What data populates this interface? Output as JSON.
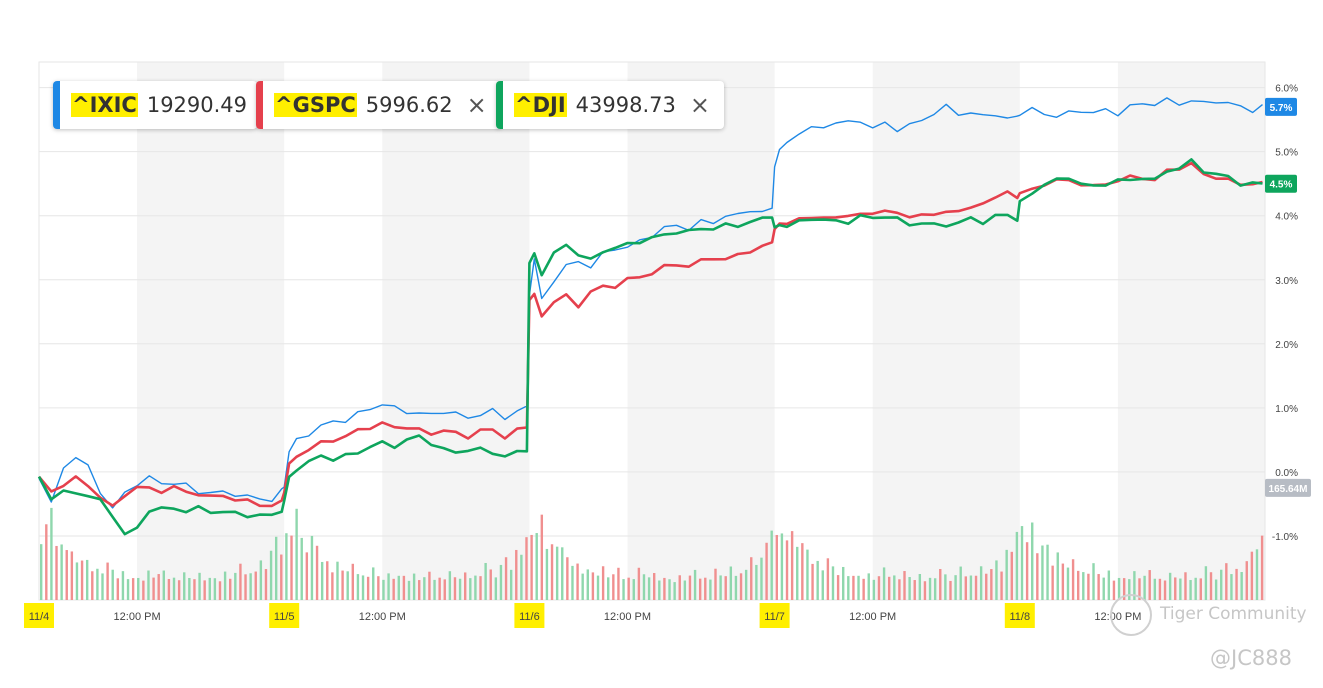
{
  "legend": [
    {
      "symbol": "^IXIC",
      "value": "19290.49",
      "color": "#1e88e5",
      "closable": false
    },
    {
      "symbol": "^GSPC",
      "value": "5996.62",
      "color": "#e5404d",
      "closable": true
    },
    {
      "symbol": "^DJI",
      "value": "43998.73",
      "color": "#0ea55d",
      "closable": true
    }
  ],
  "close_icon": "×",
  "watermark": {
    "brand": "Tiger Community",
    "handle": "@JC888"
  },
  "colors": {
    "nasdaq": "#1e88e5",
    "sp500": "#e5404d",
    "dow": "#0ea55d",
    "vol_up": "#8fd7ad",
    "vol_down": "#f08f8f",
    "band": "#f4f4f4",
    "grid": "#e6e6e6",
    "highlight": "#ffef00",
    "vol_label_bg": "#b7bcc4"
  },
  "chart_data": {
    "type": "line",
    "y_unit": "%",
    "ylim": [
      -2.0,
      6.4
    ],
    "y_ticks": [
      6,
      5,
      4,
      3,
      2,
      1,
      0,
      -1
    ],
    "y_tick_labels": [
      "6.0%",
      "5.0%",
      "4.0%",
      "3.0%",
      "2.0%",
      "1.0%",
      "0.0%",
      "-1.0%"
    ],
    "x_tick_labels": [
      "11/4",
      "12:00 PM",
      "11/5",
      "12:00 PM",
      "11/6",
      "12:00 PM",
      "11/7",
      "12:00 PM",
      "11/8",
      "12:00 PM"
    ],
    "highlighted_x_labels": [
      "11/4",
      "11/5",
      "11/6",
      "11/7",
      "11/8"
    ],
    "x_domain": [
      0,
      5
    ],
    "x": [
      0,
      0.05,
      0.1,
      0.15,
      0.2,
      0.25,
      0.3,
      0.35,
      0.4,
      0.45,
      0.5,
      0.55,
      0.6,
      0.65,
      0.7,
      0.75,
      0.8,
      0.85,
      0.9,
      0.95,
      0.99,
      1.0,
      1.02,
      1.05,
      1.1,
      1.15,
      1.2,
      1.25,
      1.3,
      1.35,
      1.4,
      1.45,
      1.5,
      1.55,
      1.6,
      1.65,
      1.7,
      1.75,
      1.8,
      1.85,
      1.9,
      1.95,
      1.99,
      2.0,
      2.02,
      2.05,
      2.1,
      2.15,
      2.2,
      2.25,
      2.3,
      2.35,
      2.4,
      2.45,
      2.5,
      2.55,
      2.6,
      2.65,
      2.7,
      2.75,
      2.8,
      2.85,
      2.9,
      2.95,
      2.99,
      3.0,
      3.02,
      3.05,
      3.1,
      3.15,
      3.2,
      3.25,
      3.3,
      3.35,
      3.4,
      3.45,
      3.5,
      3.55,
      3.6,
      3.65,
      3.7,
      3.75,
      3.8,
      3.85,
      3.9,
      3.95,
      3.99,
      4.0,
      4.05,
      4.1,
      4.15,
      4.2,
      4.25,
      4.3,
      4.35,
      4.4,
      4.45,
      4.5,
      4.55,
      4.6,
      4.65,
      4.7,
      4.75,
      4.8,
      4.85,
      4.9,
      4.95,
      4.99
    ],
    "series": [
      {
        "name": "^IXIC",
        "last_label": "5.7%",
        "values": [
          -0.1,
          -0.5,
          0.1,
          0.2,
          0.1,
          -0.3,
          -0.6,
          -0.3,
          -0.2,
          -0.1,
          -0.15,
          -0.2,
          -0.2,
          -0.3,
          -0.35,
          -0.3,
          -0.35,
          -0.4,
          -0.4,
          -0.45,
          -0.3,
          -0.2,
          0.3,
          0.5,
          0.6,
          0.7,
          0.8,
          0.8,
          0.9,
          1.0,
          1.05,
          1.0,
          0.95,
          0.9,
          0.9,
          0.95,
          0.9,
          0.85,
          0.9,
          0.95,
          0.85,
          0.95,
          1.0,
          2.8,
          3.3,
          2.7,
          3.0,
          3.2,
          3.3,
          3.2,
          3.4,
          3.5,
          3.5,
          3.6,
          3.7,
          3.8,
          3.85,
          3.8,
          3.9,
          3.9,
          4.0,
          4.0,
          4.1,
          4.05,
          4.1,
          4.8,
          5.0,
          5.15,
          5.3,
          5.35,
          5.4,
          5.45,
          5.45,
          5.5,
          5.35,
          5.45,
          5.35,
          5.4,
          5.5,
          5.6,
          5.7,
          5.6,
          5.6,
          5.55,
          5.6,
          5.5,
          5.55,
          5.6,
          5.65,
          5.6,
          5.55,
          5.6,
          5.65,
          5.6,
          5.65,
          5.6,
          5.7,
          5.75,
          5.75,
          5.8,
          5.75,
          5.8,
          5.75,
          5.8,
          5.75,
          5.7,
          5.65,
          5.7
        ]
      },
      {
        "name": "^GSPC",
        "last_label": "4.5%",
        "values": [
          -0.1,
          -0.3,
          -0.2,
          -0.1,
          -0.2,
          -0.4,
          -0.55,
          -0.35,
          -0.25,
          -0.25,
          -0.3,
          -0.25,
          -0.3,
          -0.35,
          -0.4,
          -0.35,
          -0.45,
          -0.45,
          -0.5,
          -0.55,
          -0.45,
          -0.3,
          0.1,
          0.25,
          0.35,
          0.45,
          0.5,
          0.55,
          0.65,
          0.7,
          0.75,
          0.7,
          0.7,
          0.65,
          0.6,
          0.65,
          0.6,
          0.55,
          0.65,
          0.65,
          0.55,
          0.65,
          0.7,
          2.7,
          2.75,
          2.45,
          2.65,
          2.75,
          2.6,
          2.8,
          2.9,
          2.9,
          3.0,
          3.05,
          3.1,
          3.2,
          3.25,
          3.2,
          3.3,
          3.35,
          3.3,
          3.4,
          3.45,
          3.5,
          3.6,
          3.8,
          3.85,
          3.9,
          3.95,
          3.95,
          4.0,
          3.95,
          4.0,
          4.05,
          4.0,
          4.1,
          4.05,
          3.95,
          4.05,
          4.0,
          4.05,
          4.1,
          4.1,
          4.2,
          4.3,
          4.35,
          4.3,
          4.35,
          4.4,
          4.5,
          4.55,
          4.55,
          4.5,
          4.45,
          4.5,
          4.55,
          4.6,
          4.6,
          4.55,
          4.7,
          4.75,
          4.8,
          4.65,
          4.6,
          4.55,
          4.5,
          4.5,
          4.5
        ]
      },
      {
        "name": "^DJI",
        "last_label": "4.5%",
        "values": [
          -0.1,
          -0.4,
          -0.3,
          -0.35,
          -0.35,
          -0.45,
          -0.7,
          -0.95,
          -0.9,
          -0.6,
          -0.55,
          -0.6,
          -0.6,
          -0.55,
          -0.65,
          -0.6,
          -0.65,
          -0.7,
          -0.65,
          -0.7,
          -0.6,
          -0.45,
          -0.1,
          0.05,
          0.15,
          0.25,
          0.2,
          0.25,
          0.3,
          0.4,
          0.45,
          0.4,
          0.5,
          0.55,
          0.45,
          0.35,
          0.3,
          0.35,
          0.35,
          0.3,
          0.25,
          0.3,
          0.35,
          3.25,
          3.4,
          3.1,
          3.4,
          3.55,
          3.4,
          3.3,
          3.45,
          3.5,
          3.55,
          3.6,
          3.65,
          3.7,
          3.75,
          3.75,
          3.8,
          3.8,
          3.85,
          3.85,
          3.9,
          3.95,
          4.0,
          3.8,
          3.85,
          3.85,
          3.9,
          3.95,
          3.95,
          3.9,
          3.9,
          4.0,
          3.95,
          4.0,
          3.95,
          3.85,
          3.9,
          3.85,
          3.85,
          3.9,
          3.95,
          3.9,
          4.0,
          4.0,
          3.95,
          4.2,
          4.35,
          4.5,
          4.55,
          4.6,
          4.5,
          4.45,
          4.5,
          4.55,
          4.55,
          4.6,
          4.55,
          4.7,
          4.75,
          4.85,
          4.7,
          4.65,
          4.6,
          4.5,
          4.5,
          4.5
        ]
      }
    ],
    "volume": {
      "last_label": "165.64M",
      "session_profile": [
        0.6,
        0.5,
        0.35,
        0.28,
        0.25,
        0.22,
        0.2,
        0.22,
        0.2,
        0.19,
        0.2,
        0.2,
        0.22,
        0.24,
        0.28,
        0.45
      ],
      "scale_max": 1.0
    }
  }
}
